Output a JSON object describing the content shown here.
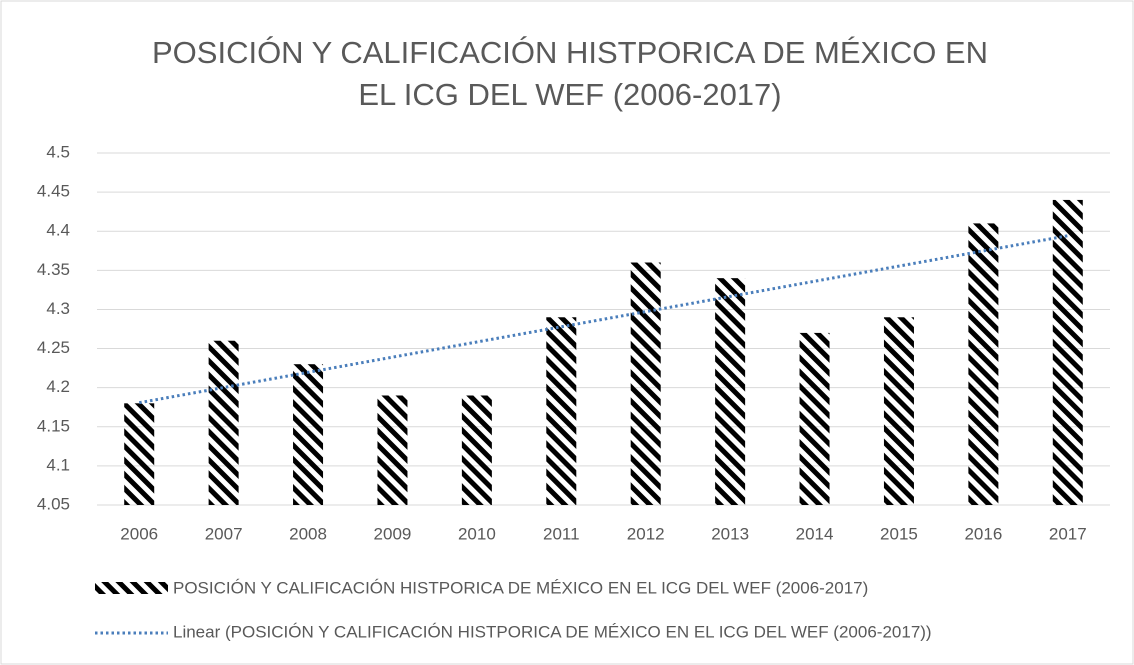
{
  "chart_data": {
    "type": "bar",
    "title": "POSICIÓN Y CALIFICACIÓN HISTPORICA DE MÉXICO EN EL ICG DEL WEF (2006-2017)",
    "categories": [
      "2006",
      "2007",
      "2008",
      "2009",
      "2010",
      "2011",
      "2012",
      "2013",
      "2014",
      "2015",
      "2016",
      "2017"
    ],
    "series": [
      {
        "name": "POSICIÓN Y CALIFICACIÓN HISTPORICA DE MÉXICO EN EL ICG DEL WEF (2006-2017)",
        "color": "#000000",
        "values": [
          4.18,
          4.26,
          4.23,
          4.19,
          4.19,
          4.29,
          4.36,
          4.34,
          4.27,
          4.29,
          4.41,
          4.44
        ]
      }
    ],
    "trendline": {
      "type": "linear",
      "name": "Linear (POSICIÓN Y CALIFICACIÓN HISTPORICA DE MÉXICO EN EL ICG DEL WEF (2006-2017))",
      "color": "#4a7ebb"
    },
    "ylim": [
      4.05,
      4.5
    ],
    "yticks": [
      4.05,
      4.1,
      4.15,
      4.2,
      4.25,
      4.3,
      4.35,
      4.4,
      4.45,
      4.5
    ],
    "grid": true,
    "legend": "bottom"
  }
}
